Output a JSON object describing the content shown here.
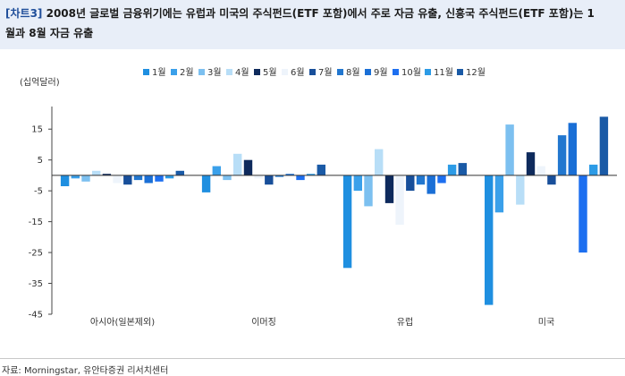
{
  "header": {
    "tag": "[차트3]",
    "title_line1": "2008년 글로벌 금융위기에는 유럽과 미국의 주식펀드(ETF 포함)에서 주로 자금 유출, 신흥국 주식펀드(ETF 포함)는 1",
    "title_line2": "월과 8월 자금 유출"
  },
  "source": "자료: Morningstar, 유안타증권 리서치센터",
  "chart_data": {
    "type": "bar",
    "unit_label": "(십억달러)",
    "categories": [
      "아시아(일본제외)",
      "이머징",
      "유럽",
      "미국"
    ],
    "ylim": [
      -45,
      20
    ],
    "yticks": [
      15,
      5,
      -5,
      -15,
      -25,
      -35,
      -45
    ],
    "grid": false,
    "legend_position": "top",
    "series": [
      {
        "name": "1월",
        "color": "#1f8fe0",
        "values": [
          -3.5,
          -5.5,
          -30,
          -42
        ]
      },
      {
        "name": "2월",
        "color": "#3aa0ea",
        "values": [
          -1,
          3,
          -5,
          -12
        ]
      },
      {
        "name": "3월",
        "color": "#7cc0f0",
        "values": [
          -2,
          -1.5,
          -10,
          16.5
        ]
      },
      {
        "name": "4월",
        "color": "#b8def7",
        "values": [
          1.5,
          7,
          8.5,
          -9.5
        ]
      },
      {
        "name": "5월",
        "color": "#0e2a5c",
        "values": [
          0.5,
          5,
          -9,
          7.5
        ]
      },
      {
        "name": "6월",
        "color": "#eef4fb",
        "values": [
          -2.5,
          -1,
          -16,
          3
        ]
      },
      {
        "name": "7월",
        "color": "#184f9a",
        "values": [
          -3,
          -3,
          -5,
          -3
        ]
      },
      {
        "name": "8월",
        "color": "#2277cf",
        "values": [
          -1.5,
          -0.5,
          -3,
          13
        ]
      },
      {
        "name": "9월",
        "color": "#1a6fd6",
        "values": [
          -2.5,
          0.5,
          -6,
          17
        ]
      },
      {
        "name": "10월",
        "color": "#1d6ff0",
        "values": [
          -2,
          -1.5,
          -2.5,
          -25
        ]
      },
      {
        "name": "11월",
        "color": "#2c9be6",
        "values": [
          -1,
          0.5,
          3.5,
          3.5
        ]
      },
      {
        "name": "12월",
        "color": "#1a5aa6",
        "values": [
          1.5,
          3.5,
          4,
          19
        ]
      }
    ]
  }
}
